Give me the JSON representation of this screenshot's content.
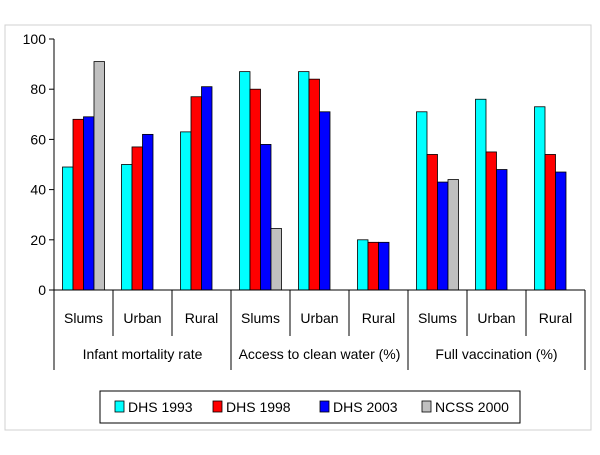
{
  "chart_data": {
    "type": "bar",
    "groups": [
      "Infant mortality rate",
      "Access to clean water (%)",
      "Full vaccination (%)"
    ],
    "categories": [
      "Slums",
      "Urban",
      "Rural",
      "Slums",
      "Urban",
      "Rural",
      "Slums",
      "Urban",
      "Rural"
    ],
    "category_group": [
      0,
      0,
      0,
      1,
      1,
      1,
      2,
      2,
      2
    ],
    "series": [
      {
        "name": "DHS 1993",
        "color": "#00FFFF",
        "values": [
          49,
          50,
          63,
          87,
          87,
          20,
          71,
          76,
          73
        ]
      },
      {
        "name": "DHS 1998",
        "color": "#FF0000",
        "values": [
          68,
          57,
          77,
          80,
          84,
          19,
          54,
          55,
          54
        ]
      },
      {
        "name": "DHS 2003",
        "color": "#0000FF",
        "values": [
          69,
          62,
          81,
          58,
          71,
          19,
          43,
          48,
          47
        ]
      },
      {
        "name": "NCSS 2000",
        "color": "#C0C0C0",
        "values": [
          91,
          null,
          null,
          24.5,
          null,
          null,
          44,
          null,
          null
        ]
      }
    ],
    "ylim": [
      0,
      100
    ],
    "yticks": [
      0,
      20,
      40,
      60,
      80,
      100
    ],
    "title": "",
    "xlabel": "",
    "ylabel": "",
    "grid": false,
    "legend_position": "bottom"
  }
}
